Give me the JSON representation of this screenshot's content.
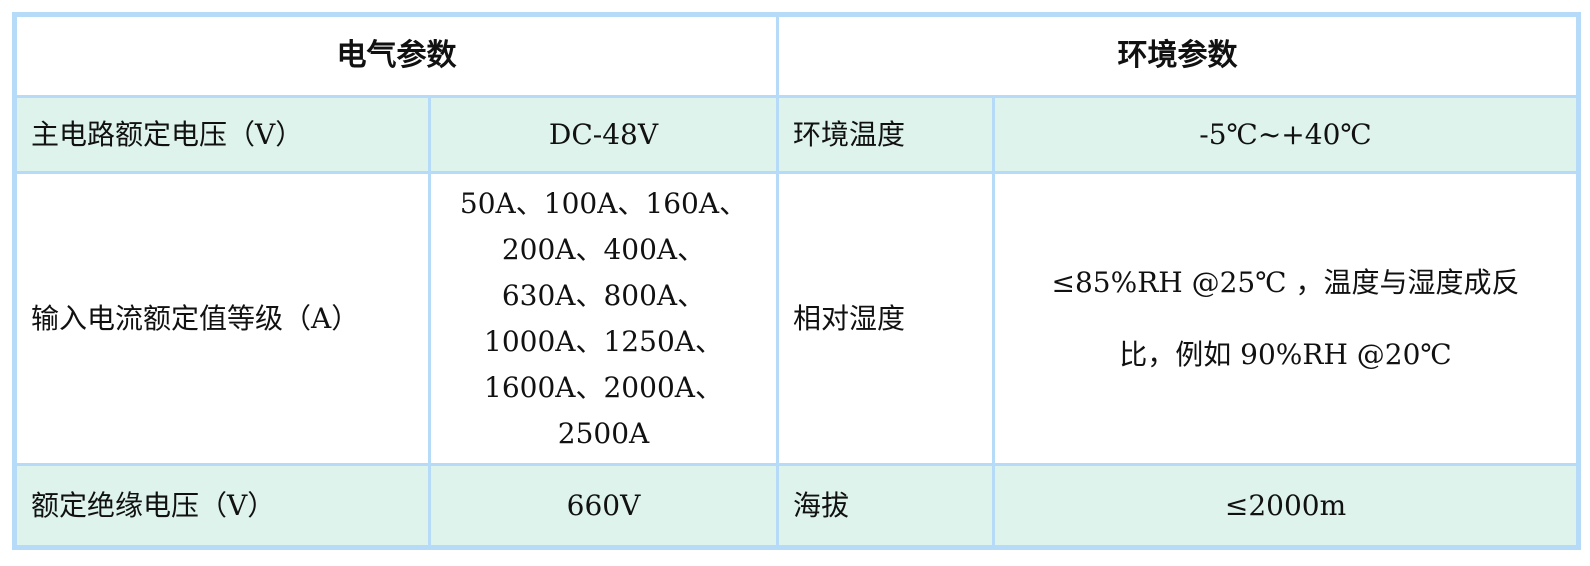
{
  "headers": {
    "electrical": "电气参数",
    "environment": "环境参数"
  },
  "rows": [
    {
      "e_label": "主电路额定电压（V）",
      "e_value": "DC-48V",
      "env_label": "环境温度",
      "env_value": "-5℃~+40℃"
    },
    {
      "e_label": "输入电流额定值等级（A）",
      "e_value_lines": [
        "50A、100A、160A、",
        "200A、400A、",
        "630A、800A、",
        "1000A、1250A、",
        "1600A、2000A、",
        "2500A"
      ],
      "env_label": "相对湿度",
      "env_value_lines": [
        "≤85%RH @25℃ ，温度与湿度成反",
        "比，例如 90%RH @20℃"
      ]
    },
    {
      "e_label": "额定绝缘电压（V）",
      "e_value": "660V",
      "env_label": "海拔",
      "env_value": "≤2000m"
    }
  ],
  "colors": {
    "border": "#b6dbf8",
    "row_fill": "#ddf3ec"
  }
}
